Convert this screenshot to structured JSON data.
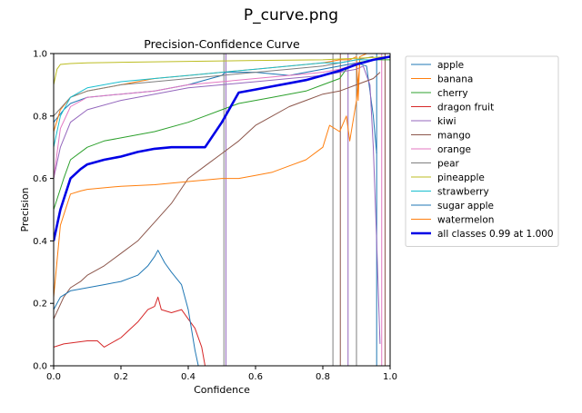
{
  "page": {
    "title": "P_curve.png"
  },
  "chart_data": {
    "type": "line",
    "title": "Precision-Confidence Curve",
    "xlabel": "Confidence",
    "ylabel": "Precision",
    "xlim": [
      0,
      1
    ],
    "ylim": [
      0,
      1
    ],
    "x_ticks": [
      "0.0",
      "0.2",
      "0.4",
      "0.6",
      "0.8",
      "1.0"
    ],
    "y_ticks": [
      "0.0",
      "0.2",
      "0.4",
      "0.6",
      "0.8",
      "1.0"
    ],
    "grid": false,
    "legend_position": "outside-right-top",
    "series": [
      {
        "name": "apple",
        "color": "#1f77b4",
        "width": 1,
        "x": [
          0.0,
          0.03,
          0.05,
          0.1,
          0.2,
          0.3,
          0.4,
          0.5,
          0.51,
          0.52,
          0.6,
          0.7,
          0.75,
          0.8,
          0.85,
          0.9,
          0.93,
          0.95,
          0.96
        ],
        "y": [
          0.78,
          0.82,
          0.84,
          0.86,
          0.87,
          0.88,
          0.9,
          0.93,
          0.94,
          0.94,
          0.94,
          0.93,
          0.94,
          0.95,
          0.96,
          0.97,
          0.96,
          0.8,
          0.68
        ]
      },
      {
        "name": "banana",
        "color": "#ff7f0e",
        "width": 1,
        "x": [
          0.0,
          0.02,
          0.05,
          0.1,
          0.2,
          0.3,
          0.4,
          0.5,
          0.6,
          0.7,
          0.8,
          0.85,
          0.88,
          0.9,
          0.905,
          0.91,
          0.93,
          1.0
        ],
        "y": [
          0.75,
          0.82,
          0.86,
          0.88,
          0.9,
          0.92,
          0.93,
          0.94,
          0.95,
          0.96,
          0.97,
          0.98,
          0.98,
          0.99,
          0.85,
          0.99,
          1.0,
          1.0
        ]
      },
      {
        "name": "cherry",
        "color": "#2ca02c",
        "width": 1,
        "x": [
          0.0,
          0.03,
          0.05,
          0.1,
          0.15,
          0.2,
          0.3,
          0.4,
          0.45,
          0.5,
          0.55,
          0.6,
          0.65,
          0.7,
          0.75,
          0.8,
          0.85,
          0.87,
          0.88,
          0.9,
          0.95,
          1.0
        ],
        "y": [
          0.5,
          0.6,
          0.66,
          0.7,
          0.72,
          0.73,
          0.75,
          0.78,
          0.8,
          0.82,
          0.84,
          0.85,
          0.86,
          0.87,
          0.88,
          0.9,
          0.92,
          0.95,
          0.96,
          0.97,
          0.98,
          0.98
        ]
      },
      {
        "name": "dragon fruit",
        "color": "#d62728",
        "width": 1,
        "x": [
          0.0,
          0.03,
          0.1,
          0.13,
          0.15,
          0.2,
          0.25,
          0.28,
          0.3,
          0.31,
          0.32,
          0.35,
          0.38,
          0.4,
          0.42,
          0.44,
          0.45
        ],
        "y": [
          0.06,
          0.07,
          0.08,
          0.08,
          0.06,
          0.09,
          0.14,
          0.18,
          0.19,
          0.22,
          0.18,
          0.17,
          0.18,
          0.15,
          0.12,
          0.06,
          0.0
        ]
      },
      {
        "name": "kiwi",
        "color": "#9467bd",
        "width": 1,
        "x": [
          0.0,
          0.02,
          0.05,
          0.1,
          0.2,
          0.3,
          0.4,
          0.5,
          0.6,
          0.7,
          0.8,
          0.85,
          0.9,
          0.92,
          0.94,
          0.95,
          0.96,
          0.97
        ],
        "y": [
          0.6,
          0.7,
          0.78,
          0.82,
          0.85,
          0.87,
          0.89,
          0.9,
          0.91,
          0.92,
          0.93,
          0.94,
          0.95,
          0.96,
          0.9,
          0.7,
          0.4,
          0.07
        ]
      },
      {
        "name": "mango",
        "color": "#8c564b",
        "width": 1,
        "x": [
          0.0,
          0.03,
          0.05,
          0.08,
          0.1,
          0.15,
          0.2,
          0.25,
          0.3,
          0.35,
          0.4,
          0.45,
          0.5,
          0.55,
          0.6,
          0.65,
          0.7,
          0.75,
          0.8,
          0.85,
          0.9,
          0.95,
          0.97
        ],
        "y": [
          0.15,
          0.22,
          0.25,
          0.27,
          0.29,
          0.32,
          0.36,
          0.4,
          0.46,
          0.52,
          0.6,
          0.64,
          0.68,
          0.72,
          0.77,
          0.8,
          0.83,
          0.85,
          0.87,
          0.88,
          0.9,
          0.92,
          0.94
        ]
      },
      {
        "name": "orange",
        "color": "#e377c2",
        "width": 1,
        "x": [
          0.0,
          0.02,
          0.05,
          0.1,
          0.2,
          0.3,
          0.4,
          0.5,
          0.6,
          0.7,
          0.8,
          0.85,
          0.88,
          0.9,
          0.92
        ],
        "y": [
          0.6,
          0.76,
          0.83,
          0.86,
          0.87,
          0.88,
          0.9,
          0.91,
          0.92,
          0.93,
          0.94,
          0.95,
          0.96,
          0.97,
          0.97
        ]
      },
      {
        "name": "pear",
        "color": "#7f7f7f",
        "width": 1,
        "x": [
          0.0,
          0.05,
          0.1,
          0.2,
          0.3,
          0.4,
          0.5,
          0.6,
          0.7,
          0.8,
          0.85,
          0.9,
          0.95
        ],
        "y": [
          0.8,
          0.86,
          0.88,
          0.9,
          0.91,
          0.92,
          0.93,
          0.94,
          0.95,
          0.96,
          0.97,
          0.98,
          0.99
        ]
      },
      {
        "name": "pineapple",
        "color": "#bcbd22",
        "width": 1,
        "x": [
          0.0,
          0.01,
          0.02,
          0.05,
          0.1,
          0.2,
          0.4,
          0.6,
          0.8,
          0.9,
          1.0
        ],
        "y": [
          0.9,
          0.95,
          0.965,
          0.968,
          0.97,
          0.972,
          0.975,
          0.978,
          0.98,
          0.985,
          0.99
        ]
      },
      {
        "name": "strawberry",
        "color": "#17becf",
        "width": 1,
        "x": [
          0.0,
          0.02,
          0.05,
          0.1,
          0.2,
          0.3,
          0.4,
          0.5,
          0.6,
          0.7,
          0.8,
          0.85,
          0.9,
          0.95
        ],
        "y": [
          0.7,
          0.8,
          0.86,
          0.89,
          0.91,
          0.92,
          0.93,
          0.94,
          0.95,
          0.96,
          0.97,
          0.97,
          0.98,
          0.98
        ]
      },
      {
        "name": "sugar apple",
        "color": "#1f77b4",
        "width": 1,
        "x": [
          0.0,
          0.02,
          0.05,
          0.1,
          0.15,
          0.2,
          0.25,
          0.28,
          0.3,
          0.31,
          0.33,
          0.35,
          0.38,
          0.4,
          0.42,
          0.43
        ],
        "y": [
          0.18,
          0.22,
          0.24,
          0.25,
          0.26,
          0.27,
          0.29,
          0.32,
          0.35,
          0.37,
          0.33,
          0.3,
          0.26,
          0.18,
          0.05,
          0.0
        ]
      },
      {
        "name": "watermelon",
        "color": "#ff7f0e",
        "width": 1,
        "x": [
          0.0,
          0.02,
          0.05,
          0.08,
          0.1,
          0.15,
          0.2,
          0.3,
          0.4,
          0.5,
          0.55,
          0.6,
          0.65,
          0.7,
          0.75,
          0.8,
          0.82,
          0.85,
          0.87,
          0.88,
          0.9,
          0.91
        ],
        "y": [
          0.22,
          0.45,
          0.55,
          0.56,
          0.565,
          0.57,
          0.575,
          0.58,
          0.59,
          0.6,
          0.6,
          0.61,
          0.62,
          0.64,
          0.66,
          0.7,
          0.77,
          0.75,
          0.8,
          0.72,
          0.85,
          0.97
        ]
      },
      {
        "name": "all classes 0.99 at 1.000",
        "color": "#0000e6",
        "width": 2.6,
        "x": [
          0.0,
          0.02,
          0.05,
          0.08,
          0.1,
          0.15,
          0.2,
          0.25,
          0.3,
          0.35,
          0.4,
          0.45,
          0.5,
          0.55,
          0.6,
          0.65,
          0.7,
          0.75,
          0.8,
          0.85,
          0.9,
          0.95,
          1.0
        ],
        "y": [
          0.4,
          0.5,
          0.6,
          0.63,
          0.645,
          0.66,
          0.67,
          0.685,
          0.695,
          0.7,
          0.7,
          0.7,
          0.78,
          0.875,
          0.885,
          0.895,
          0.905,
          0.915,
          0.93,
          0.945,
          0.965,
          0.98,
          0.99
        ]
      }
    ],
    "vlines": [
      {
        "x": 0.506,
        "color": "#7f7f7f"
      },
      {
        "x": 0.512,
        "color": "#9467bd"
      },
      {
        "x": 0.83,
        "color": "#7f7f7f"
      },
      {
        "x": 0.852,
        "color": "#8c564b"
      },
      {
        "x": 0.875,
        "color": "#9467bd"
      },
      {
        "x": 0.9,
        "color": "#7f7f7f"
      },
      {
        "x": 0.96,
        "color": "#1f77b4"
      },
      {
        "x": 0.975,
        "color": "#e377c2"
      },
      {
        "x": 0.985,
        "color": "#8c564b"
      }
    ]
  }
}
